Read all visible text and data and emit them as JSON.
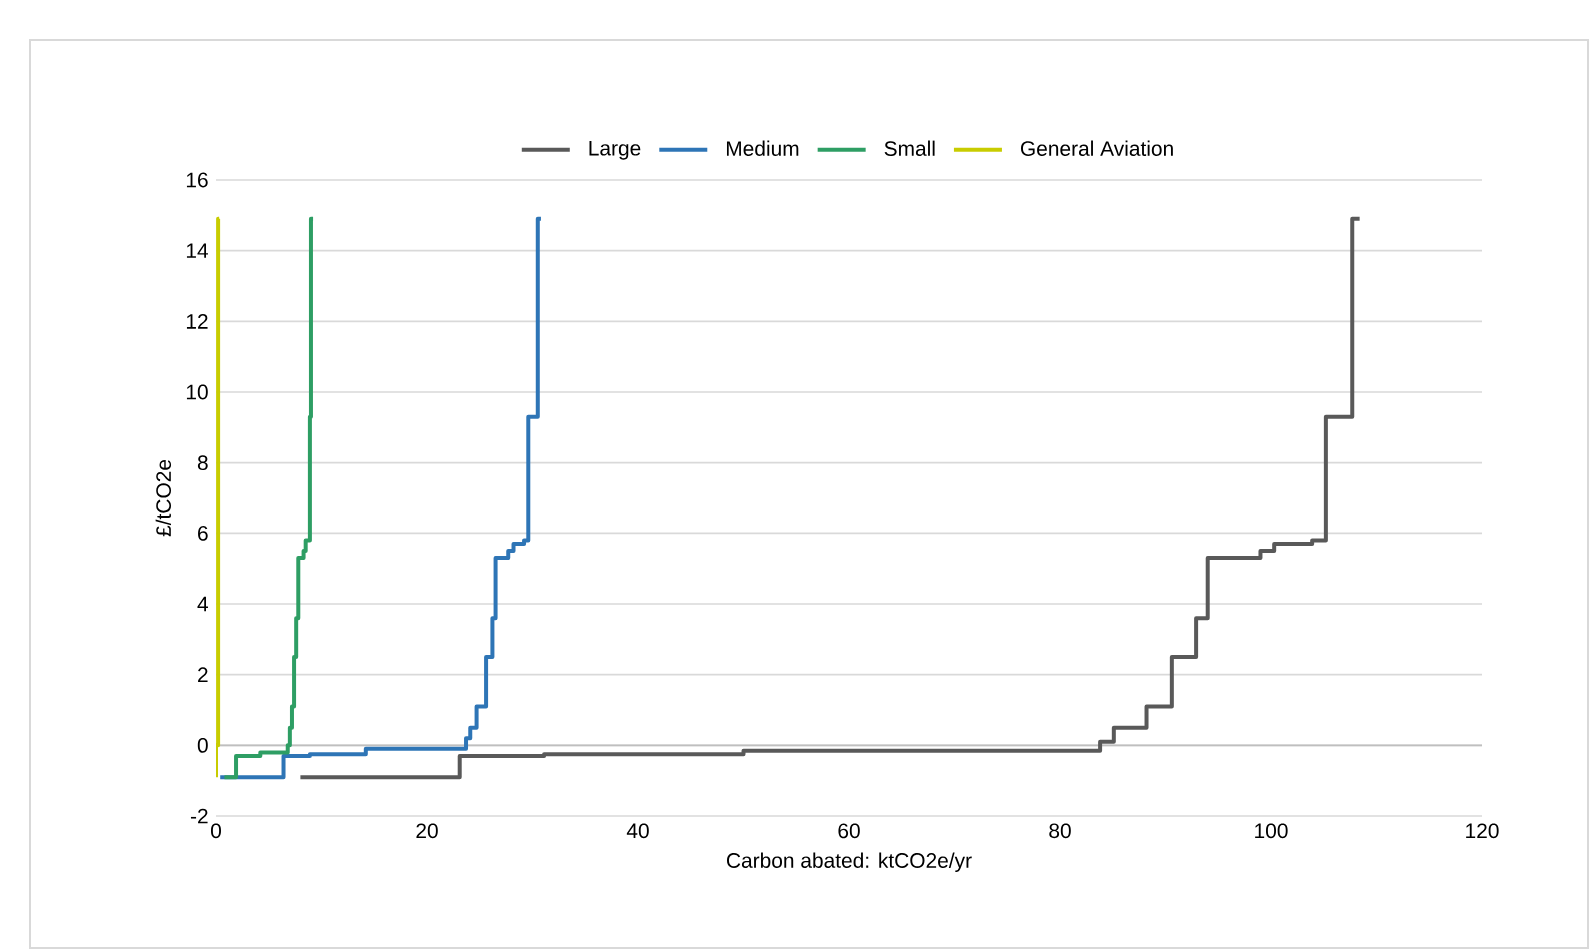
{
  "chart_data": {
    "type": "step",
    "xlabel": "Carbon abated: ktCO2e/yr",
    "ylabel": "£/tCO2e",
    "xlim": [
      0,
      120
    ],
    "xticks": [
      0,
      20,
      40,
      60,
      80,
      100,
      120
    ],
    "ylim": [
      -2,
      16
    ],
    "yticks": [
      -2,
      0,
      2,
      4,
      6,
      8,
      10,
      12,
      14,
      16
    ],
    "grid": "y",
    "legend": "top",
    "series": [
      {
        "name": "Large",
        "color": "#595959",
        "x": [
          8.0,
          23.1,
          31.1,
          50.0,
          83.8,
          85.1,
          88.2,
          90.6,
          92.9,
          94.0,
          99.0,
          100.3,
          103.9,
          105.2,
          107.7,
          108.4
        ],
        "values": [
          -0.9,
          -0.3,
          -0.25,
          -0.15,
          0.1,
          0.5,
          1.1,
          2.5,
          3.6,
          5.3,
          5.5,
          5.7,
          5.8,
          9.3,
          14.9,
          14.9
        ]
      },
      {
        "name": "Medium",
        "color": "#2e75b6",
        "x": [
          0.4,
          6.4,
          8.9,
          14.2,
          23.7,
          24.1,
          24.7,
          25.6,
          26.2,
          26.5,
          27.7,
          28.2,
          29.2,
          29.6,
          30.5,
          30.8
        ],
        "values": [
          -0.9,
          -0.3,
          -0.25,
          -0.1,
          0.2,
          0.5,
          1.1,
          2.5,
          3.6,
          5.3,
          5.5,
          5.7,
          5.8,
          9.3,
          14.9,
          14.9
        ]
      },
      {
        "name": "Small",
        "color": "#2e9e64",
        "x": [
          0.8,
          1.9,
          4.2,
          6.8,
          7.0,
          7.2,
          7.4,
          7.6,
          7.8,
          8.3,
          8.5,
          8.9,
          9.0,
          9.2
        ],
        "values": [
          -0.9,
          -0.3,
          -0.2,
          0.0,
          0.5,
          1.1,
          2.5,
          3.6,
          5.3,
          5.5,
          5.8,
          9.3,
          14.9,
          14.9
        ]
      },
      {
        "name": "General Aviation",
        "color": "#c8cc00",
        "x": [
          0,
          0,
          0.2,
          0.3
        ],
        "values": [
          -0.9,
          0,
          14.9,
          14.9
        ]
      }
    ]
  }
}
